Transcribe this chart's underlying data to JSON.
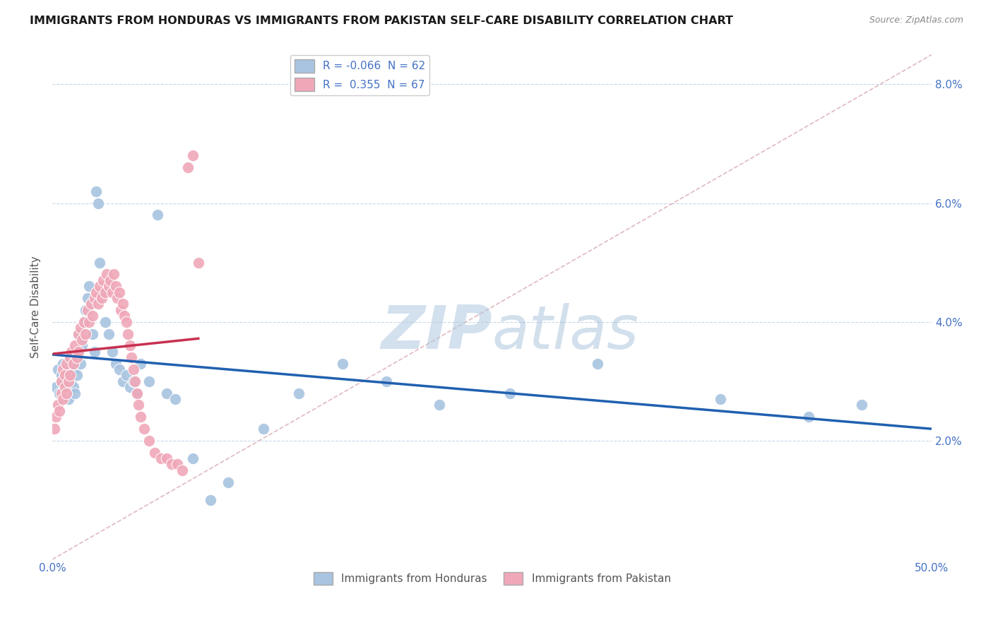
{
  "title": "IMMIGRANTS FROM HONDURAS VS IMMIGRANTS FROM PAKISTAN SELF-CARE DISABILITY CORRELATION CHART",
  "source": "Source: ZipAtlas.com",
  "ylabel": "Self-Care Disability",
  "xlim": [
    0.0,
    0.5
  ],
  "ylim": [
    0.0,
    0.085
  ],
  "yticks": [
    0.0,
    0.02,
    0.04,
    0.06,
    0.08
  ],
  "ytick_labels": [
    "",
    "2.0%",
    "4.0%",
    "6.0%",
    "8.0%"
  ],
  "xticks": [
    0.0,
    0.1,
    0.2,
    0.3,
    0.4,
    0.5
  ],
  "xtick_labels": [
    "0.0%",
    "",
    "",
    "",
    "",
    "50.0%"
  ],
  "color_honduras": "#a8c4e0",
  "color_pakistan": "#f0a8b8",
  "line_color_honduras": "#2060b0",
  "line_color_pakistan": "#c83050",
  "diagonal_color": "#d8a8b0",
  "watermark_zip": "ZIP",
  "watermark_atlas": "atlas",
  "background_color": "#ffffff",
  "grid_color": "#c8d8e8",
  "honduras_x": [
    0.002,
    0.003,
    0.004,
    0.005,
    0.005,
    0.006,
    0.006,
    0.007,
    0.007,
    0.008,
    0.008,
    0.009,
    0.01,
    0.01,
    0.011,
    0.012,
    0.013,
    0.013,
    0.014,
    0.015,
    0.015,
    0.016,
    0.017,
    0.018,
    0.019,
    0.02,
    0.021,
    0.022,
    0.023,
    0.024,
    0.025,
    0.026,
    0.027,
    0.028,
    0.03,
    0.032,
    0.034,
    0.036,
    0.038,
    0.04,
    0.042,
    0.044,
    0.046,
    0.048,
    0.05,
    0.055,
    0.06,
    0.065,
    0.07,
    0.08,
    0.09,
    0.1,
    0.12,
    0.14,
    0.165,
    0.19,
    0.22,
    0.26,
    0.31,
    0.38,
    0.43,
    0.46
  ],
  "honduras_y": [
    0.029,
    0.032,
    0.028,
    0.03,
    0.031,
    0.027,
    0.033,
    0.03,
    0.029,
    0.028,
    0.032,
    0.027,
    0.031,
    0.033,
    0.03,
    0.029,
    0.032,
    0.028,
    0.031,
    0.035,
    0.038,
    0.033,
    0.036,
    0.04,
    0.042,
    0.044,
    0.046,
    0.043,
    0.038,
    0.035,
    0.062,
    0.06,
    0.05,
    0.045,
    0.04,
    0.038,
    0.035,
    0.033,
    0.032,
    0.03,
    0.031,
    0.029,
    0.03,
    0.028,
    0.033,
    0.03,
    0.058,
    0.028,
    0.027,
    0.017,
    0.01,
    0.013,
    0.022,
    0.028,
    0.033,
    0.03,
    0.026,
    0.028,
    0.033,
    0.027,
    0.024,
    0.026
  ],
  "pakistan_x": [
    0.001,
    0.002,
    0.003,
    0.004,
    0.005,
    0.005,
    0.006,
    0.006,
    0.007,
    0.007,
    0.008,
    0.008,
    0.009,
    0.01,
    0.01,
    0.011,
    0.012,
    0.013,
    0.014,
    0.015,
    0.015,
    0.016,
    0.017,
    0.018,
    0.019,
    0.02,
    0.021,
    0.022,
    0.023,
    0.024,
    0.025,
    0.026,
    0.027,
    0.028,
    0.029,
    0.03,
    0.031,
    0.032,
    0.033,
    0.034,
    0.035,
    0.036,
    0.037,
    0.038,
    0.039,
    0.04,
    0.041,
    0.042,
    0.043,
    0.044,
    0.045,
    0.046,
    0.047,
    0.048,
    0.049,
    0.05,
    0.052,
    0.055,
    0.058,
    0.062,
    0.065,
    0.068,
    0.071,
    0.074,
    0.077,
    0.08,
    0.083
  ],
  "pakistan_y": [
    0.022,
    0.024,
    0.026,
    0.025,
    0.028,
    0.03,
    0.027,
    0.032,
    0.029,
    0.031,
    0.028,
    0.033,
    0.03,
    0.034,
    0.031,
    0.035,
    0.033,
    0.036,
    0.034,
    0.038,
    0.035,
    0.039,
    0.037,
    0.04,
    0.038,
    0.042,
    0.04,
    0.043,
    0.041,
    0.044,
    0.045,
    0.043,
    0.046,
    0.044,
    0.047,
    0.045,
    0.048,
    0.046,
    0.047,
    0.045,
    0.048,
    0.046,
    0.044,
    0.045,
    0.042,
    0.043,
    0.041,
    0.04,
    0.038,
    0.036,
    0.034,
    0.032,
    0.03,
    0.028,
    0.026,
    0.024,
    0.022,
    0.02,
    0.018,
    0.017,
    0.017,
    0.016,
    0.016,
    0.015,
    0.066,
    0.068,
    0.05
  ],
  "legend1_label": "R = -0.066  N = 62",
  "legend2_label": "R =  0.355  N = 67",
  "bottom_legend1": "Immigrants from Honduras",
  "bottom_legend2": "Immigrants from Pakistan"
}
